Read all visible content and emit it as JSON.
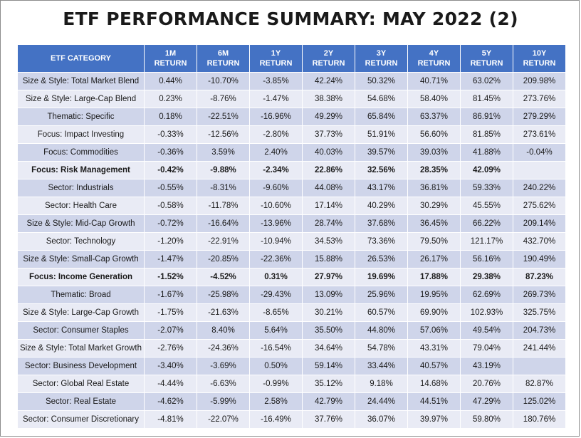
{
  "title": "ETF PERFORMANCE SUMMARY: MAY 2022 (2)",
  "table": {
    "headers": [
      {
        "line1": "ETF CATEGORY",
        "line2": ""
      },
      {
        "line1": "1M",
        "line2": "RETURN"
      },
      {
        "line1": "6M",
        "line2": "RETURN"
      },
      {
        "line1": "1Y",
        "line2": "RETURN"
      },
      {
        "line1": "2Y",
        "line2": "RETURN"
      },
      {
        "line1": "3Y",
        "line2": "RETURN"
      },
      {
        "line1": "4Y",
        "line2": "RETURN"
      },
      {
        "line1": "5Y",
        "line2": "RETURN"
      },
      {
        "line1": "10Y",
        "line2": "RETURN"
      }
    ],
    "rows": [
      {
        "bold": false,
        "cells": [
          "Size & Style: Total Market Blend",
          "0.44%",
          "-10.70%",
          "-3.85%",
          "42.24%",
          "50.32%",
          "40.71%",
          "63.02%",
          "209.98%"
        ]
      },
      {
        "bold": false,
        "cells": [
          "Size & Style: Large-Cap Blend",
          "0.23%",
          "-8.76%",
          "-1.47%",
          "38.38%",
          "54.68%",
          "58.40%",
          "81.45%",
          "273.76%"
        ]
      },
      {
        "bold": false,
        "cells": [
          "Thematic: Specific",
          "0.18%",
          "-22.51%",
          "-16.96%",
          "49.29%",
          "65.84%",
          "63.37%",
          "86.91%",
          "279.29%"
        ]
      },
      {
        "bold": false,
        "cells": [
          "Focus: Impact Investing",
          "-0.33%",
          "-12.56%",
          "-2.80%",
          "37.73%",
          "51.91%",
          "56.60%",
          "81.85%",
          "273.61%"
        ]
      },
      {
        "bold": false,
        "cells": [
          "Focus: Commodities",
          "-0.36%",
          "3.59%",
          "2.40%",
          "40.03%",
          "39.57%",
          "39.03%",
          "41.88%",
          "-0.04%"
        ]
      },
      {
        "bold": true,
        "cells": [
          "Focus: Risk Management",
          "-0.42%",
          "-9.88%",
          "-2.34%",
          "22.86%",
          "32.56%",
          "28.35%",
          "42.09%",
          ""
        ]
      },
      {
        "bold": false,
        "cells": [
          "Sector: Industrials",
          "-0.55%",
          "-8.31%",
          "-9.60%",
          "44.08%",
          "43.17%",
          "36.81%",
          "59.33%",
          "240.22%"
        ]
      },
      {
        "bold": false,
        "cells": [
          "Sector: Health Care",
          "-0.58%",
          "-11.78%",
          "-10.60%",
          "17.14%",
          "40.29%",
          "30.29%",
          "45.55%",
          "275.62%"
        ]
      },
      {
        "bold": false,
        "cells": [
          "Size & Style: Mid-Cap Growth",
          "-0.72%",
          "-16.64%",
          "-13.96%",
          "28.74%",
          "37.68%",
          "36.45%",
          "66.22%",
          "209.14%"
        ]
      },
      {
        "bold": false,
        "cells": [
          "Sector: Technology",
          "-1.20%",
          "-22.91%",
          "-10.94%",
          "34.53%",
          "73.36%",
          "79.50%",
          "121.17%",
          "432.70%"
        ]
      },
      {
        "bold": false,
        "cells": [
          "Size & Style: Small-Cap Growth",
          "-1.47%",
          "-20.85%",
          "-22.36%",
          "15.88%",
          "26.53%",
          "26.17%",
          "56.16%",
          "190.49%"
        ]
      },
      {
        "bold": true,
        "cells": [
          "Focus: Income Generation",
          "-1.52%",
          "-4.52%",
          "0.31%",
          "27.97%",
          "19.69%",
          "17.88%",
          "29.38%",
          "87.23%"
        ]
      },
      {
        "bold": false,
        "cells": [
          "Thematic: Broad",
          "-1.67%",
          "-25.98%",
          "-29.43%",
          "13.09%",
          "25.96%",
          "19.95%",
          "62.69%",
          "269.73%"
        ]
      },
      {
        "bold": false,
        "cells": [
          "Size & Style: Large-Cap Growth",
          "-1.75%",
          "-21.63%",
          "-8.65%",
          "30.21%",
          "60.57%",
          "69.90%",
          "102.93%",
          "325.75%"
        ]
      },
      {
        "bold": false,
        "cells": [
          "Sector: Consumer Staples",
          "-2.07%",
          "8.40%",
          "5.64%",
          "35.50%",
          "44.80%",
          "57.06%",
          "49.54%",
          "204.73%"
        ]
      },
      {
        "bold": false,
        "cells": [
          "Size & Style: Total Market Growth",
          "-2.76%",
          "-24.36%",
          "-16.54%",
          "34.64%",
          "54.78%",
          "43.31%",
          "79.04%",
          "241.44%"
        ]
      },
      {
        "bold": false,
        "cells": [
          "Sector: Business Development",
          "-3.40%",
          "-3.69%",
          "0.50%",
          "59.14%",
          "33.44%",
          "40.57%",
          "43.19%",
          ""
        ]
      },
      {
        "bold": false,
        "cells": [
          "Sector: Global Real Estate",
          "-4.44%",
          "-6.63%",
          "-0.99%",
          "35.12%",
          "9.18%",
          "14.68%",
          "20.76%",
          "82.87%"
        ]
      },
      {
        "bold": false,
        "cells": [
          "Sector: Real Estate",
          "-4.62%",
          "-5.99%",
          "2.58%",
          "42.79%",
          "24.44%",
          "44.51%",
          "47.29%",
          "125.02%"
        ]
      },
      {
        "bold": false,
        "cells": [
          "Sector: Consumer Discretionary",
          "-4.81%",
          "-22.07%",
          "-16.49%",
          "37.76%",
          "36.07%",
          "39.97%",
          "59.80%",
          "180.76%"
        ]
      }
    ]
  }
}
